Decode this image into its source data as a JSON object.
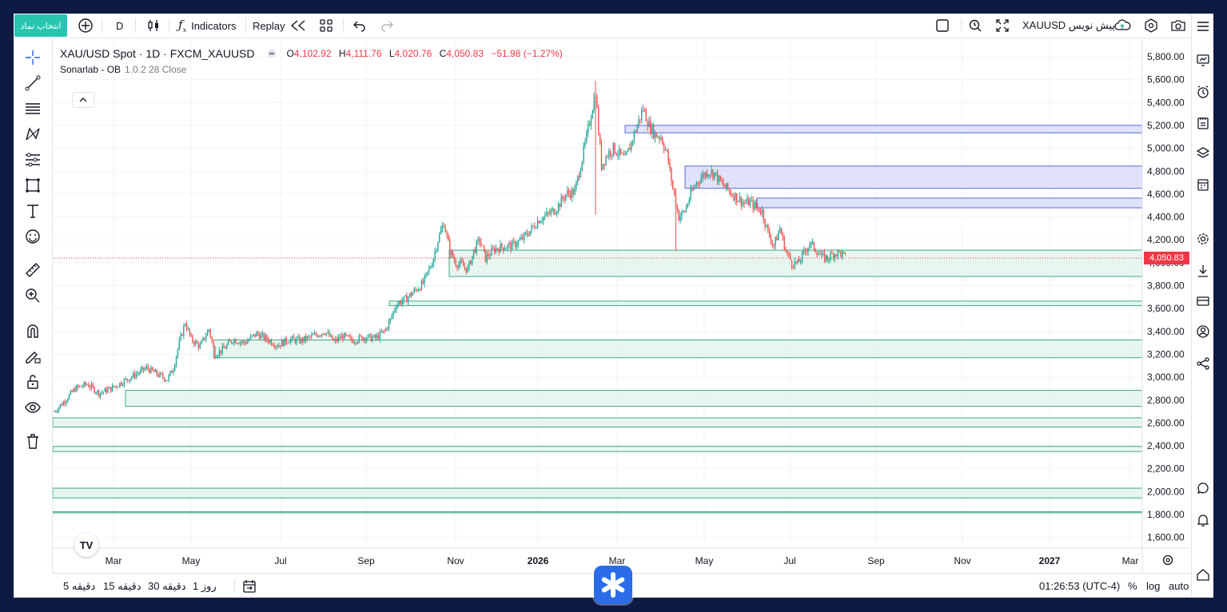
{
  "topbar": {
    "symbol_button": "انتخاب نماد",
    "interval": "D",
    "indicators_label": "Indicators",
    "replay_label": "Replay",
    "symbol_right": "XAUUSD پیش نویس"
  },
  "legend": {
    "title": "XAU/USD Spot · 1D · FXCM_XAUUSD",
    "o_label": "O",
    "o_val": "4,102.92",
    "h_label": "H",
    "h_val": "4,111.76",
    "l_label": "L",
    "l_val": "4,020.76",
    "c_label": "C",
    "c_val": "4,050.83",
    "change": "−51.98 (−1.27%)",
    "indicator": "Sonarlab - OB",
    "indicator_params": "1.0.2 28 Close"
  },
  "price_label": "4,050.83",
  "bottombar": {
    "timeframes": [
      "5 دقیقه",
      "15 دقیقه",
      "30 دقیقه",
      "1 روز"
    ],
    "time": "01:26:53 (UTC-4)",
    "percent": "%",
    "log": "log",
    "auto": "auto"
  },
  "colors": {
    "up": "#26a69a",
    "down": "#ef5350",
    "accent": "#26c6b0",
    "bear_zone_fill": "#c5cbf5",
    "bear_zone_line": "#5b6bd6",
    "bull_zone_fill": "#d3f0e3",
    "bull_zone_line": "#3ea882"
  },
  "chart_data": {
    "type": "candlestick",
    "y_ticks": [
      "5,800.00",
      "5,600.00",
      "5,400.00",
      "5,200.00",
      "5,000.00",
      "4,800.00",
      "4,600.00",
      "4,400.00",
      "4,200.00",
      "4,000.00",
      "3,800.00",
      "3,600.00",
      "3,400.00",
      "3,200.00",
      "3,000.00",
      "2,800.00",
      "2,600.00",
      "2,400.00",
      "2,200.00",
      "2,000.00",
      "1,800.00",
      "1,600.00"
    ],
    "x_ticks": [
      {
        "label": "Mar",
        "bold": false
      },
      {
        "label": "May",
        "bold": false
      },
      {
        "label": "Jul",
        "bold": false
      },
      {
        "label": "Sep",
        "bold": false
      },
      {
        "label": "Nov",
        "bold": false
      },
      {
        "label": "2026",
        "bold": true
      },
      {
        "label": "Mar",
        "bold": false
      },
      {
        "label": "May",
        "bold": false
      },
      {
        "label": "Jul",
        "bold": false
      },
      {
        "label": "Sep",
        "bold": false
      },
      {
        "label": "Nov",
        "bold": false
      },
      {
        "label": "2027",
        "bold": true
      },
      {
        "label": "Mar",
        "bold": false
      }
    ],
    "ylim": [
      1500,
      5900
    ],
    "last_price": 4050.83,
    "bearish_zones": [
      {
        "top": 5200,
        "bottom": 5135
      },
      {
        "top": 4845,
        "bottom": 4650
      },
      {
        "top": 4565,
        "bottom": 4480
      }
    ],
    "bullish_zones": [
      {
        "top": 4110,
        "bottom": 3880
      },
      {
        "top": 3665,
        "bottom": 3625
      },
      {
        "top": 3325,
        "bottom": 3170
      },
      {
        "top": 2885,
        "bottom": 2745
      },
      {
        "top": 2645,
        "bottom": 2565
      },
      {
        "top": 2395,
        "bottom": 2350
      },
      {
        "top": 2030,
        "bottom": 1945
      },
      {
        "top": 1825,
        "bottom": 1815
      }
    ],
    "price_path": [
      [
        0,
        2700
      ],
      [
        6,
        2780
      ],
      [
        14,
        2900
      ],
      [
        22,
        2940
      ],
      [
        30,
        2860
      ],
      [
        38,
        2900
      ],
      [
        46,
        2960
      ],
      [
        54,
        3020
      ],
      [
        62,
        3080
      ],
      [
        70,
        3020
      ],
      [
        76,
        2980
      ],
      [
        80,
        3080
      ],
      [
        84,
        3300
      ],
      [
        88,
        3480
      ],
      [
        92,
        3330
      ],
      [
        98,
        3270
      ],
      [
        104,
        3420
      ],
      [
        108,
        3200
      ],
      [
        114,
        3250
      ],
      [
        120,
        3330
      ],
      [
        128,
        3300
      ],
      [
        136,
        3380
      ],
      [
        142,
        3340
      ],
      [
        150,
        3280
      ],
      [
        158,
        3330
      ],
      [
        166,
        3320
      ],
      [
        174,
        3360
      ],
      [
        182,
        3400
      ],
      [
        188,
        3310
      ],
      [
        194,
        3360
      ],
      [
        200,
        3320
      ],
      [
        208,
        3350
      ],
      [
        216,
        3340
      ],
      [
        222,
        3400
      ],
      [
        226,
        3500
      ],
      [
        230,
        3640
      ],
      [
        236,
        3680
      ],
      [
        242,
        3750
      ],
      [
        248,
        3820
      ],
      [
        254,
        4000
      ],
      [
        258,
        4200
      ],
      [
        262,
        4350
      ],
      [
        266,
        4100
      ],
      [
        270,
        4000
      ],
      [
        274,
        3980
      ],
      [
        278,
        3940
      ],
      [
        282,
        4100
      ],
      [
        286,
        4200
      ],
      [
        290,
        4040
      ],
      [
        296,
        4120
      ],
      [
        302,
        4140
      ],
      [
        308,
        4150
      ],
      [
        314,
        4200
      ],
      [
        320,
        4280
      ],
      [
        326,
        4380
      ],
      [
        332,
        4420
      ],
      [
        338,
        4480
      ],
      [
        344,
        4600
      ],
      [
        350,
        4620
      ],
      [
        354,
        4850
      ],
      [
        358,
        5100
      ],
      [
        361,
        5300
      ],
      [
        364,
        5500
      ],
      [
        366,
        5150
      ],
      [
        368,
        4850
      ],
      [
        372,
        4950
      ],
      [
        376,
        5000
      ],
      [
        380,
        4950
      ],
      [
        384,
        4900
      ],
      [
        388,
        5050
      ],
      [
        392,
        5200
      ],
      [
        396,
        5350
      ],
      [
        400,
        5200
      ],
      [
        404,
        5120
      ],
      [
        408,
        5100
      ],
      [
        412,
        4950
      ],
      [
        416,
        4650
      ],
      [
        420,
        4400
      ],
      [
        424,
        4450
      ],
      [
        428,
        4600
      ],
      [
        432,
        4700
      ],
      [
        436,
        4760
      ],
      [
        440,
        4800
      ],
      [
        444,
        4780
      ],
      [
        448,
        4700
      ],
      [
        452,
        4650
      ],
      [
        456,
        4600
      ],
      [
        460,
        4560
      ],
      [
        464,
        4520
      ],
      [
        468,
        4530
      ],
      [
        472,
        4480
      ],
      [
        476,
        4450
      ],
      [
        480,
        4260
      ],
      [
        484,
        4150
      ],
      [
        488,
        4300
      ],
      [
        492,
        4100
      ],
      [
        496,
        4000
      ],
      [
        500,
        3990
      ],
      [
        504,
        4080
      ],
      [
        508,
        4170
      ],
      [
        512,
        4120
      ],
      [
        516,
        4050
      ],
      [
        520,
        4040
      ],
      [
        524,
        4080
      ],
      [
        528,
        4090
      ],
      [
        532,
        4050
      ]
    ]
  }
}
